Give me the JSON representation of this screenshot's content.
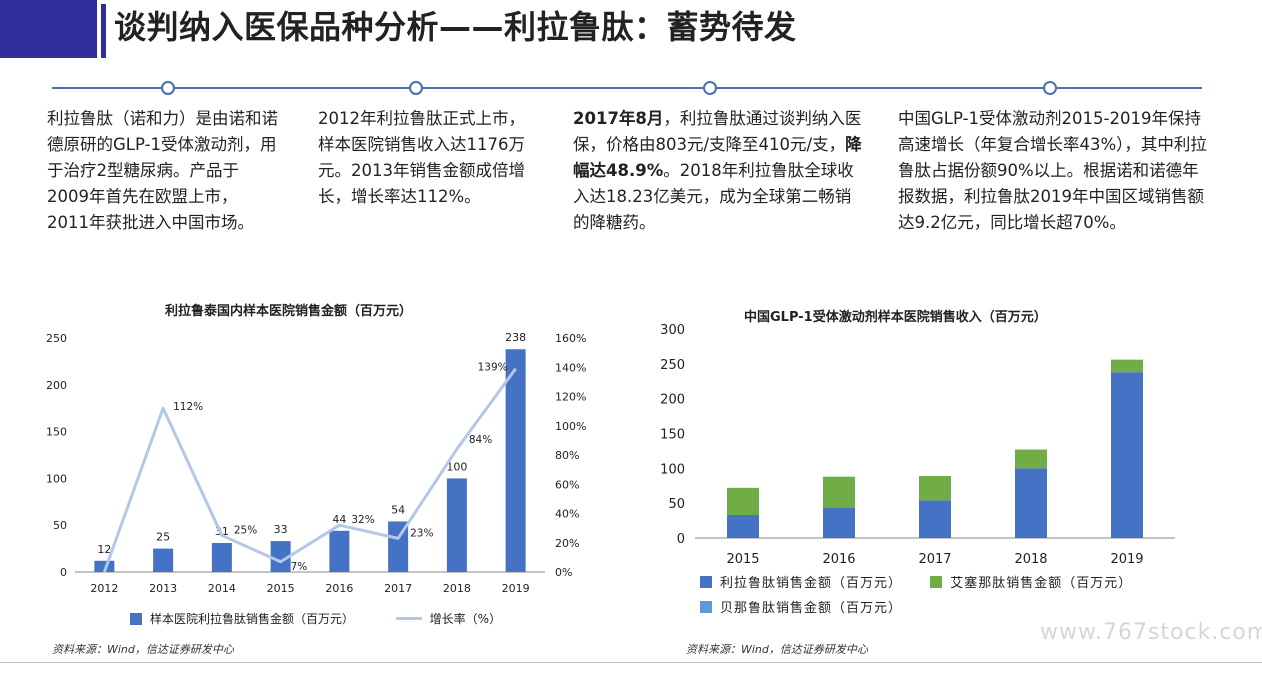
{
  "header": {
    "title": "谈判纳入医保品种分析——利拉鲁肽：蓄势待发",
    "accent_color": "#2e2f9c"
  },
  "timeline": {
    "color": "#4a6fb5",
    "items": [
      {
        "text": "利拉鲁肽（诺和力）是由诺和诺德原研的GLP-1受体激动剂，用于治疗2型糖尿病。产品于2009年首先在欧盟上市，2011年获批进入中国市场。"
      },
      {
        "text": "2012年利拉鲁肽正式上市，样本医院销售收入达1176万元。2013年销售金额成倍增长，增长率达112%。"
      },
      {
        "bold_lead": "2017年8月",
        "text_a": "，利拉鲁肽通过谈判纳入医保，价格由803元/支降至410元/支，",
        "bold_mid": "降幅达48.9%",
        "text_b": "。2018年利拉鲁肽全球收入达18.23亿美元，成为全球第二畅销的降糖药。"
      },
      {
        "text": "中国GLP-1受体激动剂2015-2019年保持高速增长（年复合增长率43%），其中利拉鲁肽占据份额90%以上。根据诺和诺德年报数据，利拉鲁肽2019年中国区域销售额达9.2亿元，同比增长超70%。"
      }
    ]
  },
  "charts": [
    {
      "title": "利拉鲁泰国内样本医院销售金额（百万元）",
      "legend": {
        "bar_label": "样本医院利拉鲁肽销售金额（百万元）",
        "line_label": "增长率（%）"
      },
      "source": "资料来源：Wind，信达证券研发中心"
    },
    {
      "title": "中国GLP-1受体激动剂样本医院销售收入（百万元）",
      "legend": [
        "利拉鲁肽销售金额（百万元）",
        "艾塞那肽销售金额（百万元）",
        "贝那鲁肽销售金额（百万元）"
      ],
      "source": "资料来源：Wind，信达证券研发中心"
    }
  ],
  "chart_data": [
    {
      "type": "bar",
      "categories": [
        "2012",
        "2013",
        "2014",
        "2015",
        "2016",
        "2017",
        "2018",
        "2019"
      ],
      "series": [
        {
          "name": "样本医院利拉鲁肽销售金额（百万元）",
          "type": "bar",
          "axis": "left",
          "values": [
            12,
            25,
            31,
            33,
            44,
            54,
            100,
            238
          ],
          "labels": [
            "12",
            "25",
            "31",
            "33",
            "44",
            "54",
            "100",
            "238"
          ],
          "color": "#4472c4"
        },
        {
          "name": "增长率（%）",
          "type": "line",
          "axis": "right",
          "values": [
            0,
            112,
            25,
            7,
            32,
            23,
            84,
            139
          ],
          "labels": [
            "",
            "112%",
            "25%",
            "7%",
            "32%",
            "23%",
            "84%",
            "139%"
          ],
          "color": "#b4c7e7"
        }
      ],
      "left_ticks": [
        "0",
        "50",
        "100",
        "150",
        "200",
        "250"
      ],
      "right_ticks": [
        "0%",
        "20%",
        "40%",
        "60%",
        "80%",
        "100%",
        "120%",
        "140%",
        "160%"
      ],
      "ylim": [
        0,
        250
      ],
      "y2lim": [
        0,
        160
      ]
    },
    {
      "type": "bar",
      "stacked": true,
      "categories": [
        "2015",
        "2016",
        "2017",
        "2018",
        "2019"
      ],
      "series": [
        {
          "name": "利拉鲁肽销售金额（百万元）",
          "values": [
            33,
            44,
            54,
            100,
            238
          ],
          "color": "#4472c4"
        },
        {
          "name": "艾塞那肽销售金额（百万元）",
          "values": [
            39,
            44,
            35,
            27,
            18
          ],
          "color": "#70ad47"
        },
        {
          "name": "贝那鲁肽销售金额（百万元）",
          "values": [
            0,
            0,
            0,
            0,
            0
          ],
          "color": "#5b9bd5"
        }
      ],
      "y_ticks": [
        "0",
        "50",
        "100",
        "150",
        "200",
        "250",
        "300"
      ],
      "ylim": [
        0,
        300
      ]
    }
  ],
  "footer": {
    "watermark": "www.767stock.com"
  }
}
